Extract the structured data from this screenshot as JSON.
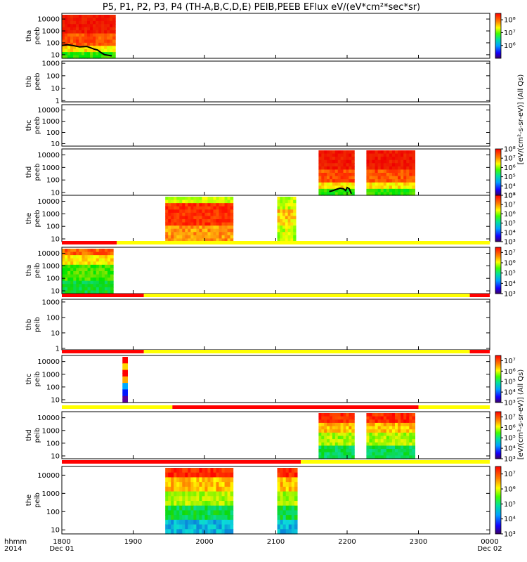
{
  "chart_data": {
    "type": "heatmap",
    "title": "P5, P1, P2, P3, P4 (TH-A,B,C,D,E) PEIB,PEEB EFlux eV/(eV*cm²*sec*sr)",
    "x_time_label": "hhmm",
    "x_date_label": "2014",
    "x_ticks": [
      "1800",
      "1900",
      "2000",
      "2100",
      "2200",
      "2300",
      "0000"
    ],
    "x_tick_dates": [
      "Dec 01",
      "",
      "",
      "",
      "",
      "",
      "Dec 02"
    ],
    "x_range_hours": [
      18,
      24
    ],
    "colorbar_label_electron": "[eV/(cm²-s-sr-eV)] (All Qs)",
    "colorbar_label_ion": "[eV/(cm²-s-sr-eV)] (All Qs)",
    "panels": [
      {
        "id": "tha_peeb",
        "ylabel": [
          "tha",
          "peeb"
        ],
        "yticks": [
          "10000",
          "1000",
          "100",
          "10"
        ],
        "yrange": [
          5,
          30000
        ],
        "cbar_ticks": [
          "10⁸",
          "10⁷",
          "10⁶"
        ],
        "cbar_range": [
          5,
          8.5
        ],
        "blocks": [
          {
            "t0": 18.0,
            "t1": 18.75,
            "scheme": "red_dense"
          }
        ],
        "trace": [
          [
            18.0,
            60
          ],
          [
            18.08,
            70
          ],
          [
            18.15,
            60
          ],
          [
            18.25,
            45
          ],
          [
            18.35,
            50
          ],
          [
            18.45,
            30
          ],
          [
            18.5,
            25
          ],
          [
            18.55,
            15
          ],
          [
            18.6,
            10
          ],
          [
            18.7,
            8
          ]
        ],
        "qual_bar": null
      },
      {
        "id": "thb_peeb",
        "ylabel": [
          "thb",
          "peeb"
        ],
        "yticks": [
          "1000",
          "100",
          "10",
          "1"
        ],
        "yrange": [
          0.8,
          1500
        ],
        "cbar_ticks": [],
        "cbar_range": null,
        "blocks": [],
        "trace": [],
        "qual_bar": null
      },
      {
        "id": "thc_peeb",
        "ylabel": [
          "thc",
          "peeb"
        ],
        "yticks": [
          "10000",
          "1000",
          "100",
          "10"
        ],
        "yrange": [
          6,
          30000
        ],
        "cbar_ticks": [],
        "cbar_range": null,
        "blocks": [],
        "trace": [],
        "qual_bar": null
      },
      {
        "id": "thd_peeb",
        "ylabel": [
          "thd",
          "peeb"
        ],
        "yticks": [
          "10000",
          "1000",
          "100",
          "10"
        ],
        "yrange": [
          6,
          30000
        ],
        "cbar_ticks": [
          "10⁸",
          "10⁷",
          "10⁶",
          "10⁵",
          "10⁴",
          "10³"
        ],
        "cbar_range": [
          3,
          8
        ],
        "blocks": [
          {
            "t0": 21.6,
            "t1": 22.1,
            "scheme": "red_dense"
          },
          {
            "t0": 22.27,
            "t1": 22.95,
            "scheme": "red_dense"
          }
        ],
        "trace": [
          [
            21.75,
            12
          ],
          [
            21.8,
            14
          ],
          [
            21.85,
            18
          ],
          [
            21.9,
            22
          ],
          [
            21.95,
            20
          ],
          [
            21.98,
            14
          ],
          [
            22.0,
            25
          ],
          [
            22.03,
            20
          ],
          [
            22.06,
            8
          ]
        ],
        "qual_bar": null
      },
      {
        "id": "the_peeb",
        "ylabel": [
          "the",
          "peeb"
        ],
        "yticks": [
          "10000",
          "1000",
          "100",
          "10"
        ],
        "yrange": [
          6,
          30000
        ],
        "cbar_ticks": [
          "10⁸",
          "10⁷",
          "10⁶",
          "10⁵",
          "10⁴",
          "10³"
        ],
        "cbar_range": [
          3,
          8
        ],
        "blocks": [
          {
            "t0": 19.45,
            "t1": 20.4,
            "scheme": "red_band"
          },
          {
            "t0": 21.02,
            "t1": 21.28,
            "scheme": "mixed"
          }
        ],
        "trace": [],
        "qual_bar": null
      },
      {
        "id": "tha_peib",
        "ylabel": [
          "tha",
          "peib"
        ],
        "yticks": [
          "10000",
          "1000",
          "100",
          "10"
        ],
        "yrange": [
          6,
          30000
        ],
        "cbar_ticks": [
          "10⁷",
          "10⁶",
          "10⁵",
          "10⁴",
          "10³"
        ],
        "cbar_range": [
          3,
          7.5
        ],
        "blocks": [
          {
            "t0": 18.0,
            "t1": 18.72,
            "scheme": "ion_green"
          }
        ],
        "trace": [],
        "qual_bar": [
          {
            "t0": 18.0,
            "t1": 18.77,
            "c": "red"
          },
          {
            "t0": 18.77,
            "t1": 24.0,
            "c": "yellow"
          }
        ]
      },
      {
        "id": "thb_peib",
        "ylabel": [
          "thb",
          "peib"
        ],
        "yticks": [
          "1000",
          "100",
          "10",
          "1"
        ],
        "yrange": [
          0.8,
          1500
        ],
        "cbar_ticks": [],
        "cbar_range": null,
        "blocks": [],
        "trace": [],
        "qual_bar": [
          {
            "t0": 18.0,
            "t1": 19.15,
            "c": "red"
          },
          {
            "t0": 19.15,
            "t1": 23.72,
            "c": "yellow"
          },
          {
            "t0": 23.72,
            "t1": 24.0,
            "c": "red"
          }
        ]
      },
      {
        "id": "thc_peib",
        "ylabel": [
          "thc",
          "peib"
        ],
        "yticks": [
          "10000",
          "1000",
          "100",
          "10"
        ],
        "yrange": [
          6,
          30000
        ],
        "cbar_ticks": [
          "10⁷",
          "10⁶",
          "10⁵",
          "10⁴",
          "10³"
        ],
        "cbar_range": [
          3,
          7.5
        ],
        "blocks": [
          {
            "t0": 18.85,
            "t1": 18.92,
            "scheme": "spike"
          }
        ],
        "trace": [],
        "qual_bar": [
          {
            "t0": 18.0,
            "t1": 19.15,
            "c": "red"
          },
          {
            "t0": 19.15,
            "t1": 23.72,
            "c": "yellow"
          },
          {
            "t0": 23.72,
            "t1": 24.0,
            "c": "red"
          }
        ]
      },
      {
        "id": "thd_peib",
        "ylabel": [
          "thd",
          "peib"
        ],
        "yticks": [
          "10000",
          "1000",
          "100",
          "10"
        ],
        "yrange": [
          6,
          30000
        ],
        "cbar_ticks": [
          "10⁷",
          "10⁶",
          "10⁵",
          "10⁴",
          "10³"
        ],
        "cbar_range": [
          3,
          7.5
        ],
        "blocks": [
          {
            "t0": 21.6,
            "t1": 22.1,
            "scheme": "ion_mid"
          },
          {
            "t0": 22.27,
            "t1": 22.95,
            "scheme": "ion_mid"
          }
        ],
        "trace": [],
        "qual_bar": [
          {
            "t0": 18.0,
            "t1": 19.55,
            "c": "yellow"
          },
          {
            "t0": 19.55,
            "t1": 23.0,
            "c": "red"
          },
          {
            "t0": 23.0,
            "t1": 24.0,
            "c": "yellow"
          }
        ]
      },
      {
        "id": "the_peib",
        "ylabel": [
          "the",
          "peib"
        ],
        "yticks": [
          "10000",
          "1000",
          "100",
          "10"
        ],
        "yrange": [
          6,
          30000
        ],
        "cbar_ticks": [
          "10⁷",
          "10⁶",
          "10⁵",
          "10⁴",
          "10³"
        ],
        "cbar_range": [
          3,
          7.5
        ],
        "blocks": [
          {
            "t0": 19.45,
            "t1": 20.4,
            "scheme": "ion_low"
          },
          {
            "t0": 21.02,
            "t1": 21.3,
            "scheme": "ion_low"
          }
        ],
        "trace": [],
        "qual_bar": [
          {
            "t0": 18.0,
            "t1": 21.35,
            "c": "red"
          },
          {
            "t0": 21.35,
            "t1": 24.0,
            "c": "yellow"
          }
        ]
      }
    ]
  },
  "colors": {
    "qual_red": "#ff0000",
    "qual_yellow": "#ffff00",
    "trace": "#000000"
  }
}
